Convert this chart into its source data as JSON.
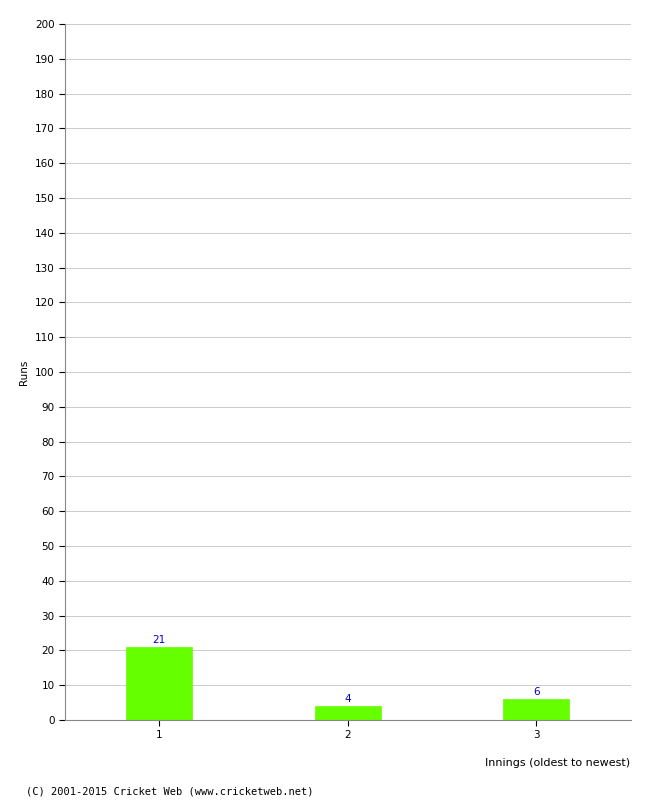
{
  "categories": [
    "1",
    "2",
    "3"
  ],
  "values": [
    21,
    4,
    6
  ],
  "bar_color": "#66ff00",
  "bar_edge_color": "#66ff00",
  "ylabel": "Runs",
  "xlabel": "Innings (oldest to newest)",
  "ylim": [
    0,
    200
  ],
  "ytick_step": 10,
  "annotation_color": "#0000cc",
  "annotation_fontsize": 7.5,
  "xlabel_fontsize": 8,
  "ylabel_fontsize": 7.5,
  "tick_fontsize": 7.5,
  "footer_text": "(C) 2001-2015 Cricket Web (www.cricketweb.net)",
  "footer_fontsize": 7.5,
  "background_color": "#ffffff",
  "grid_color": "#cccccc"
}
